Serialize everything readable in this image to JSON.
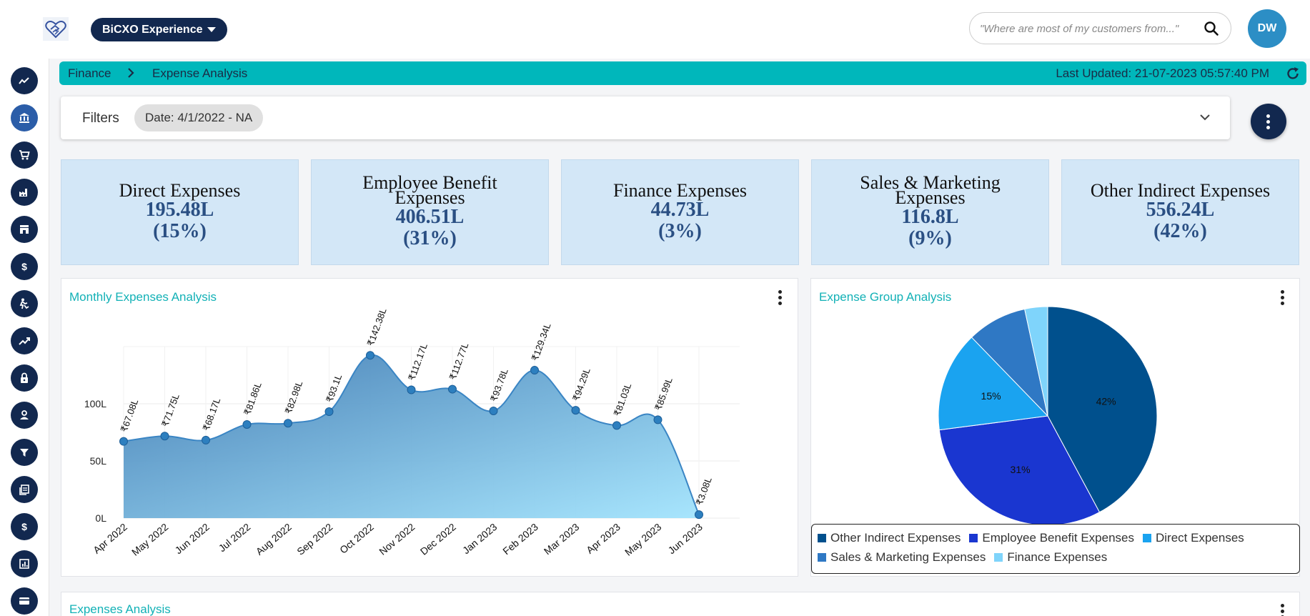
{
  "header": {
    "experience_label": "BiCXO Experience",
    "search_placeholder": "\"Where are most of my customers from...\"",
    "avatar_initials": "DW"
  },
  "sidebar": {
    "items": [
      {
        "icon": "line-chart-icon"
      },
      {
        "icon": "bank-icon",
        "active": true
      },
      {
        "icon": "cart-icon"
      },
      {
        "icon": "factory-icon"
      },
      {
        "icon": "store-icon"
      },
      {
        "icon": "dollar-icon"
      },
      {
        "icon": "person-icon"
      },
      {
        "icon": "trend-up-icon"
      },
      {
        "icon": "lock-icon"
      },
      {
        "icon": "user-icon"
      },
      {
        "icon": "filter-icon"
      },
      {
        "icon": "documents-icon"
      },
      {
        "icon": "dollar-icon"
      },
      {
        "icon": "report-icon"
      },
      {
        "icon": "card-icon"
      }
    ]
  },
  "breadcrumb": {
    "items": [
      "Finance",
      "Expense Analysis"
    ],
    "last_updated": "Last Updated: 21-07-2023 05:57:40 PM"
  },
  "filters": {
    "label": "Filters",
    "chip": "Date: 4/1/2022 - NA"
  },
  "kpis": [
    {
      "title": "Direct Expenses",
      "value": "195.48L",
      "pct": "(15%)"
    },
    {
      "title": "Employee Benefit Expenses",
      "value": "406.51L",
      "pct": "(31%)"
    },
    {
      "title": "Finance Expenses",
      "value": "44.73L",
      "pct": "(3%)"
    },
    {
      "title": "Sales & Marketing Expenses",
      "value": "116.8L",
      "pct": "(9%)"
    },
    {
      "title": "Other Indirect Expenses",
      "value": "556.24L",
      "pct": "(42%)"
    }
  ],
  "panels": {
    "monthly_title": "Monthly Expenses Analysis",
    "group_title": "Expense Group Analysis",
    "bottom_title": "Expenses Analysis"
  },
  "colors": {
    "navy": "#12284f",
    "teal": "#00b7bb",
    "kpi_bg": "#d3e7f7",
    "kpi_value": "#2a4f83"
  },
  "chart_data": [
    {
      "type": "area",
      "title": "Monthly Expenses Analysis",
      "categories": [
        "Apr 2022",
        "May 2022",
        "Jun 2022",
        "Jul 2022",
        "Aug 2022",
        "Sep 2022",
        "Oct 2022",
        "Nov 2022",
        "Dec 2022",
        "Jan 2023",
        "Feb 2023",
        "Mar 2023",
        "Apr 2023",
        "May 2023",
        "Jun 2023"
      ],
      "values": [
        67.08,
        71.75,
        68.17,
        81.86,
        82.98,
        93.1,
        142.38,
        112.17,
        112.77,
        93.78,
        129.34,
        94.29,
        81.03,
        85.99,
        3.08
      ],
      "data_labels": [
        "₹67.08L",
        "₹71.75L",
        "₹68.17L",
        "₹81.86L",
        "₹82.98L",
        "₹93.1L",
        "₹142.38L",
        "₹112.17L",
        "₹112.77L",
        "₹93.78L",
        "₹129.34L",
        "₹94.29L",
        "₹81.03L",
        "₹85.99L",
        "₹3.08L"
      ],
      "yticks": [
        "0L",
        "50L",
        "100L"
      ],
      "ytick_values": [
        0,
        50,
        100
      ],
      "ylim": [
        0,
        150
      ],
      "grid": true
    },
    {
      "type": "pie",
      "title": "Expense Group Analysis",
      "labels": [
        "Other Indirect Expenses",
        "Employee Benefit Expenses",
        "Direct Expenses",
        "Sales & Marketing Expenses",
        "Finance Expenses"
      ],
      "values": [
        556.24,
        406.51,
        195.48,
        116.8,
        44.73
      ],
      "slice_labels": [
        "42%",
        "31%",
        "15%",
        "",
        ""
      ],
      "colors": [
        "#00508d",
        "#1a36d0",
        "#1aa3f0",
        "#2f78c4",
        "#7fd4fb"
      ],
      "legend": "bottom"
    }
  ]
}
